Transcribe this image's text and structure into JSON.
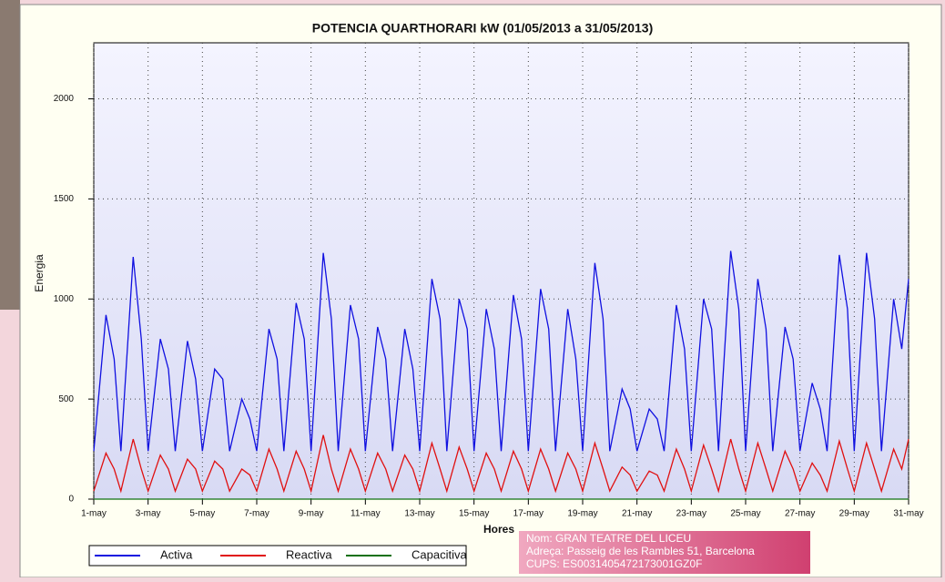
{
  "chart_data": {
    "type": "line",
    "title": "POTENCIA QUARTHORARI kW  (01/05/2013 a 31/05/2013)",
    "y_label": "Energia",
    "x_label": "Hores",
    "info": [
      "Nom: GRAN TEATRE DEL LICEU",
      "Adreça: Passeig de les Rambles 51, Barcelona",
      "CUPS: ES0031405472173001GZ0F"
    ],
    "xlim": [
      1,
      31
    ],
    "ylim": [
      0,
      2280
    ],
    "grid": true,
    "yticks": [
      0,
      500,
      1000,
      1500,
      2000
    ],
    "xticks": [
      {
        "value": 1,
        "label": "1-may"
      },
      {
        "value": 3,
        "label": "3-may"
      },
      {
        "value": 5,
        "label": "5-may"
      },
      {
        "value": 7,
        "label": "7-may"
      },
      {
        "value": 9,
        "label": "9-may"
      },
      {
        "value": 11,
        "label": "11-may"
      },
      {
        "value": 13,
        "label": "13-may"
      },
      {
        "value": 15,
        "label": "15-may"
      },
      {
        "value": 17,
        "label": "17-may"
      },
      {
        "value": 19,
        "label": "19-may"
      },
      {
        "value": 21,
        "label": "21-may"
      },
      {
        "value": 23,
        "label": "23-may"
      },
      {
        "value": 25,
        "label": "25-may"
      },
      {
        "value": 27,
        "label": "27-may"
      },
      {
        "value": 29,
        "label": "29-may"
      },
      {
        "value": 31,
        "label": "31-may"
      }
    ],
    "x": [
      1,
      1.45,
      1.75,
      2,
      2.45,
      2.75,
      3,
      3.45,
      3.75,
      4,
      4.45,
      4.75,
      5,
      5.45,
      5.75,
      6,
      6.45,
      6.75,
      7,
      7.45,
      7.75,
      8,
      8.45,
      8.75,
      9,
      9.45,
      9.75,
      10,
      10.45,
      10.75,
      11,
      11.45,
      11.75,
      12,
      12.45,
      12.75,
      13,
      13.45,
      13.75,
      14,
      14.45,
      14.75,
      15,
      15.45,
      15.75,
      16,
      16.45,
      16.75,
      17,
      17.45,
      17.75,
      18,
      18.45,
      18.75,
      19,
      19.45,
      19.75,
      20,
      20.45,
      20.75,
      21,
      21.45,
      21.75,
      22,
      22.45,
      22.75,
      23,
      23.45,
      23.75,
      24,
      24.45,
      24.75,
      25,
      25.45,
      25.75,
      26,
      26.45,
      26.75,
      27,
      27.45,
      27.75,
      28,
      28.45,
      28.75,
      29,
      29.45,
      29.75,
      30,
      30.45,
      30.75,
      31
    ],
    "series": [
      {
        "name": "Activa",
        "color": "#1010e0",
        "values": [
          240,
          920,
          700,
          240,
          1210,
          800,
          240,
          800,
          650,
          240,
          790,
          600,
          240,
          650,
          600,
          240,
          500,
          400,
          240,
          850,
          700,
          240,
          980,
          800,
          240,
          1230,
          900,
          240,
          970,
          800,
          240,
          860,
          700,
          240,
          850,
          650,
          240,
          1100,
          900,
          240,
          1000,
          850,
          240,
          950,
          750,
          240,
          1020,
          800,
          240,
          1050,
          850,
          240,
          950,
          700,
          240,
          1180,
          900,
          240,
          550,
          450,
          240,
          450,
          400,
          240,
          970,
          750,
          240,
          1000,
          850,
          240,
          1240,
          950,
          240,
          1100,
          850,
          240,
          860,
          700,
          240,
          580,
          450,
          240,
          1220,
          950,
          240,
          1230,
          900,
          240,
          1000,
          750,
          1100
        ]
      },
      {
        "name": "Reactiva",
        "color": "#e01010",
        "values": [
          40,
          230,
          150,
          40,
          300,
          150,
          40,
          220,
          150,
          40,
          200,
          150,
          40,
          190,
          150,
          40,
          150,
          120,
          40,
          250,
          150,
          40,
          240,
          150,
          40,
          320,
          150,
          40,
          250,
          150,
          40,
          230,
          150,
          40,
          220,
          150,
          40,
          280,
          150,
          40,
          260,
          150,
          40,
          230,
          150,
          40,
          240,
          150,
          40,
          250,
          150,
          40,
          230,
          150,
          40,
          280,
          150,
          40,
          160,
          120,
          40,
          140,
          120,
          40,
          250,
          150,
          40,
          270,
          150,
          40,
          300,
          150,
          40,
          280,
          150,
          40,
          240,
          150,
          40,
          180,
          120,
          40,
          290,
          150,
          40,
          280,
          150,
          40,
          250,
          150,
          300
        ]
      },
      {
        "name": "Capacitiva",
        "color": "#107010",
        "values": [
          0,
          0,
          0,
          0,
          0,
          0,
          0,
          0,
          0,
          0,
          0,
          0,
          0,
          0,
          0,
          0,
          0,
          0,
          0,
          0,
          0,
          0,
          0,
          0,
          0,
          0,
          0,
          0,
          0,
          0,
          0,
          0,
          0,
          0,
          0,
          0,
          0,
          0,
          0,
          0,
          0,
          0,
          0,
          0,
          0,
          0,
          0,
          0,
          0,
          0,
          0,
          0,
          0,
          0,
          0,
          0,
          0,
          0,
          0,
          0,
          0,
          0,
          0,
          0,
          0,
          0,
          0,
          0,
          0,
          0,
          0,
          0,
          0,
          0,
          0,
          0,
          0,
          0,
          0,
          0,
          0,
          0,
          0,
          0,
          0,
          0,
          0,
          0,
          0,
          0,
          0
        ]
      }
    ]
  }
}
